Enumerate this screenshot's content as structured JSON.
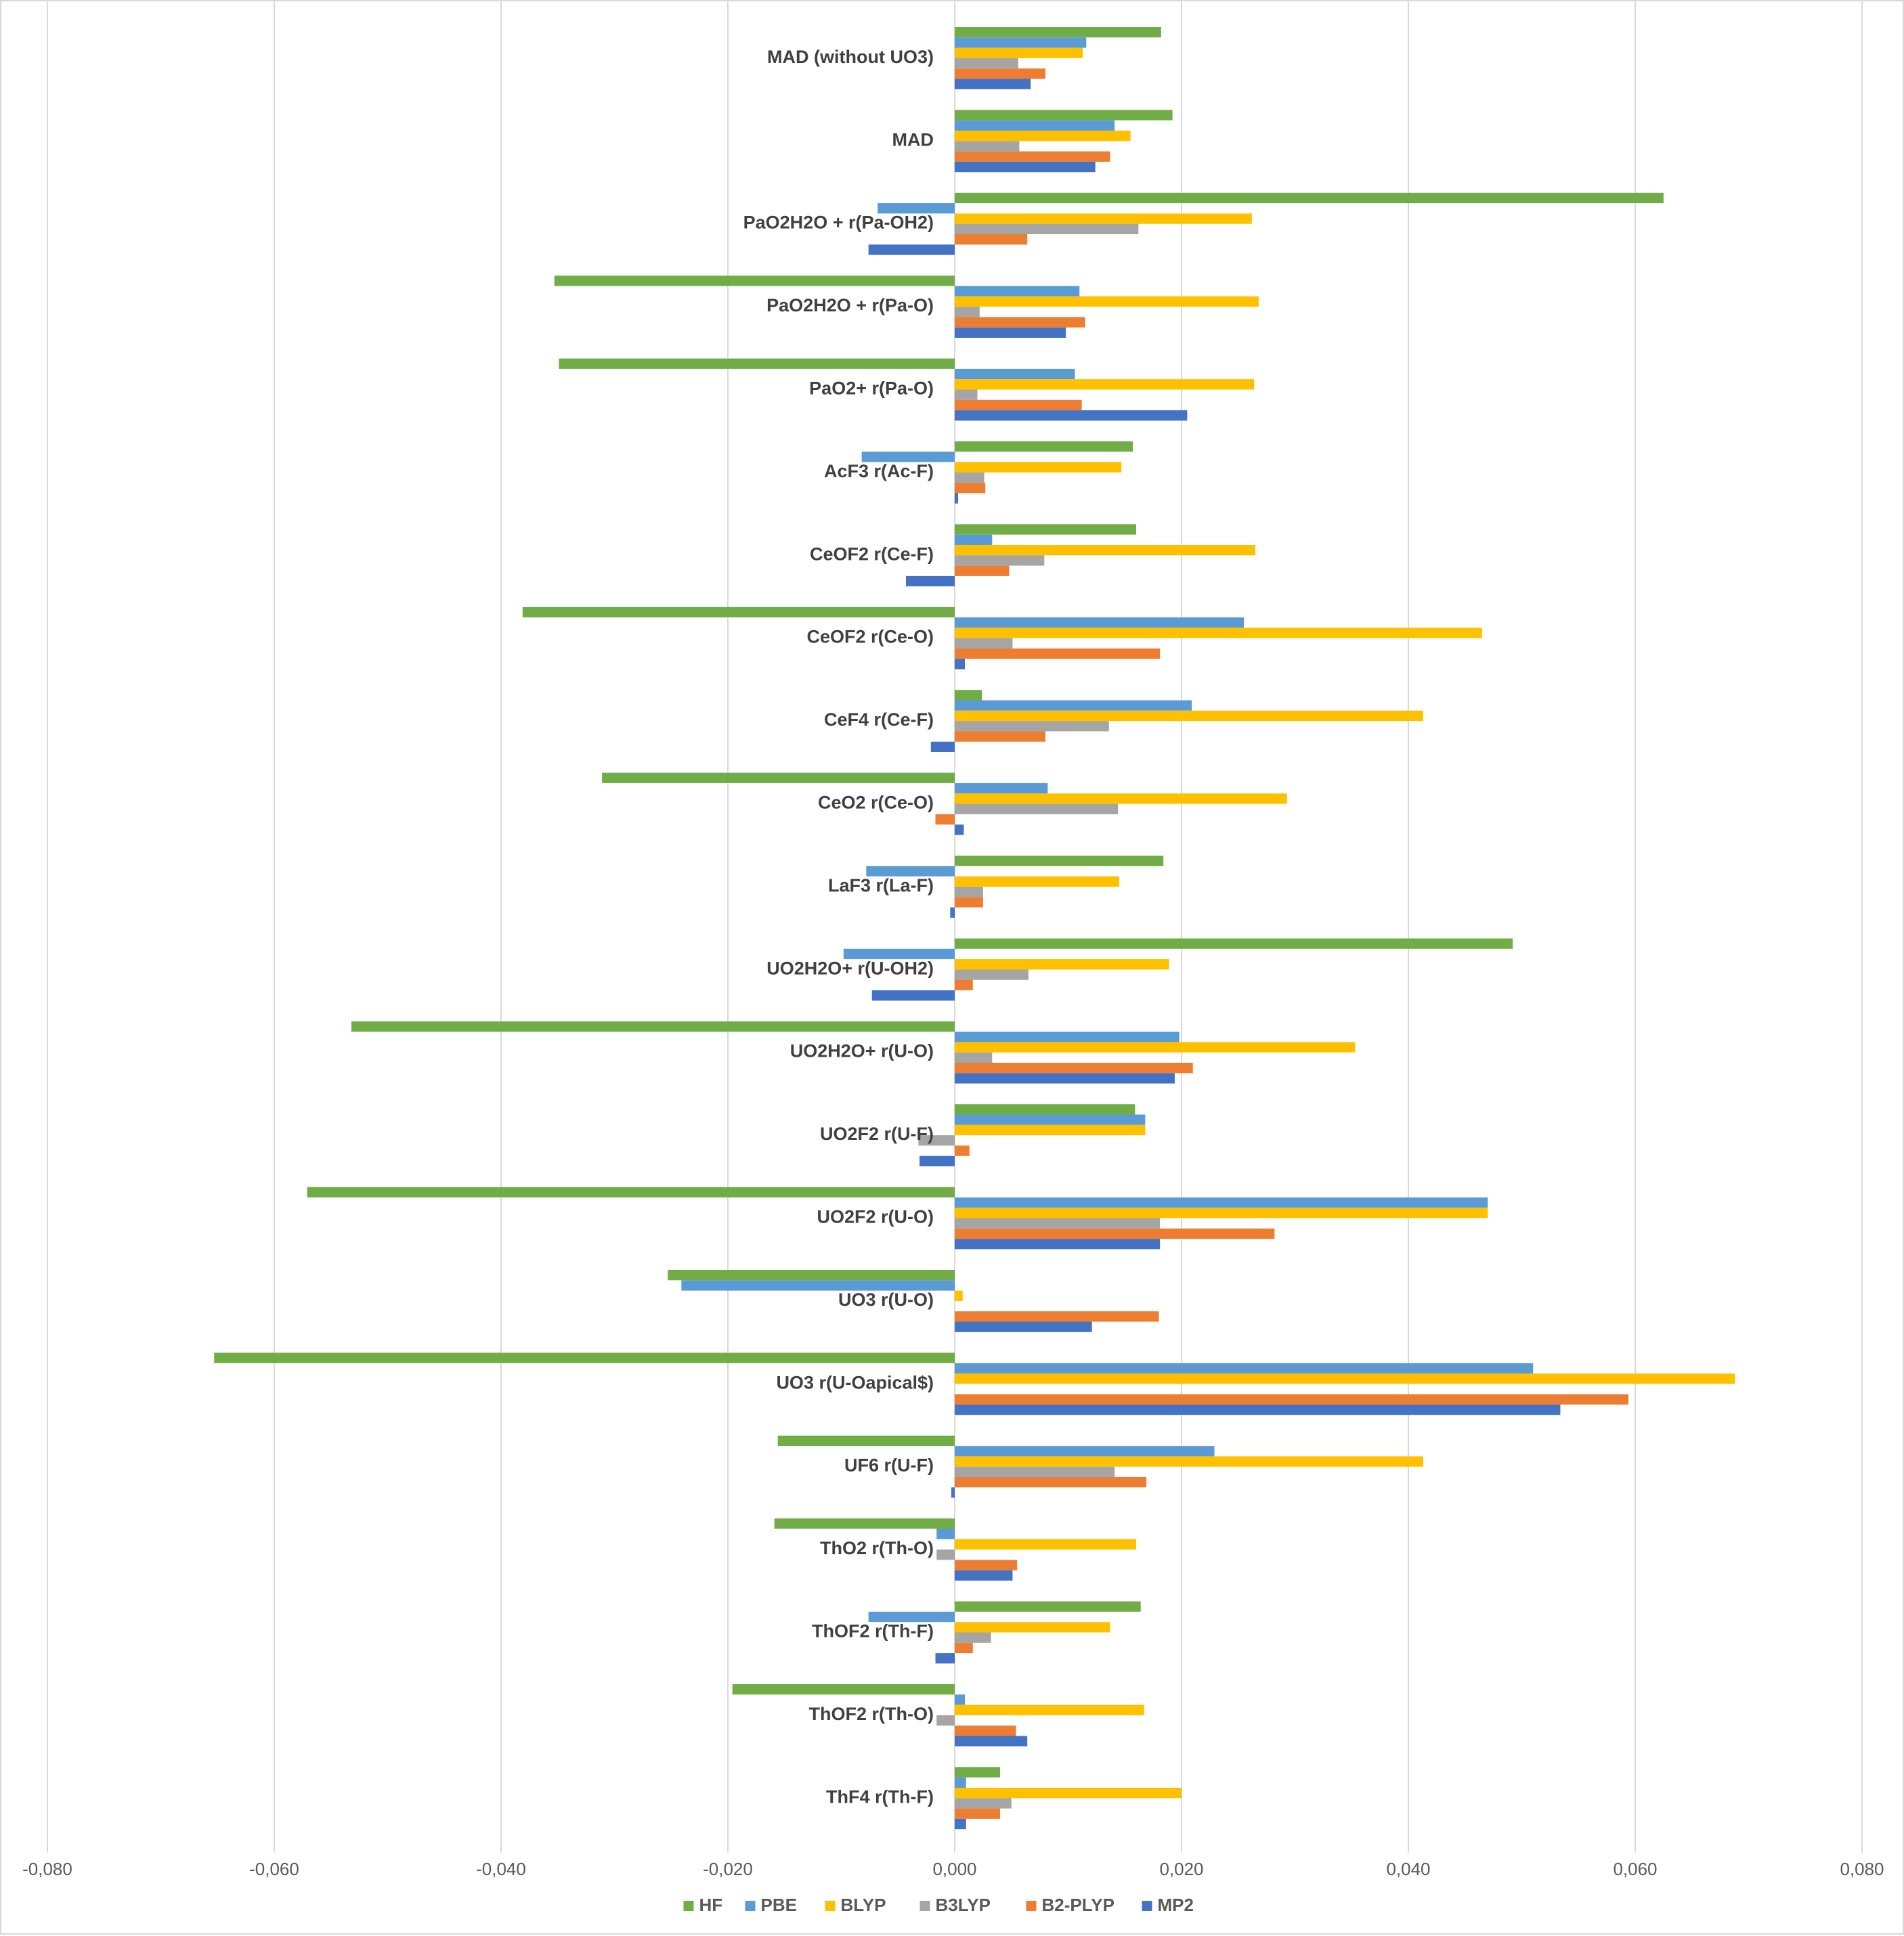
{
  "chart_data": {
    "type": "bar",
    "orientation": "horizontal",
    "title": "",
    "xlabel": "",
    "ylabel": "",
    "xlim": [
      -0.08,
      0.08
    ],
    "xticks": [
      -0.08,
      -0.06,
      -0.04,
      -0.02,
      0,
      0.02,
      0.04,
      0.06,
      0.08
    ],
    "xtick_labels": [
      "-0,080",
      "-0,060",
      "-0,040",
      "-0,020",
      "0,000",
      "0,020",
      "0,040",
      "0,060",
      "0,080"
    ],
    "grid": "vertical",
    "legend_position": "bottom",
    "categories": [
      "MAD (without UO3)",
      "MAD",
      "PaO2H2O +  r(Pa-OH2)",
      "PaO2H2O +  r(Pa-O)",
      "PaO2+ r(Pa-O)",
      "AcF3 r(Ac-F)",
      "CeOF2 r(Ce-F)",
      "CeOF2 r(Ce-O)",
      "CeF4 r(Ce-F)",
      "CeO2 r(Ce-O)",
      "LaF3 r(La-F)",
      "UO2H2O+ r(U-OH2)",
      "UO2H2O+ r(U-O)",
      "UO2F2 r(U-F)",
      "UO2F2 r(U-O)",
      "UO3 r(U-O)",
      "UO3 r(U-Oapical$)",
      "UF6 r(U-F)",
      "ThO2 r(Th-O)",
      "ThOF2 r(Th-F)",
      "ThOF2 r(Th-O)",
      "ThF4 r(Th-F)"
    ],
    "series": [
      {
        "name": "HF",
        "color": "#70ad47",
        "values": [
          0.0182,
          0.0192,
          0.0625,
          -0.0353,
          -0.0349,
          0.0157,
          0.016,
          -0.0381,
          0.0024,
          -0.0311,
          0.0184,
          0.0492,
          -0.0532,
          0.0159,
          -0.0571,
          -0.0253,
          -0.0653,
          -0.0156,
          -0.0159,
          0.0164,
          -0.0196,
          0.004
        ]
      },
      {
        "name": "PBE",
        "color": "#5b9bd5",
        "values": [
          0.0116,
          0.0141,
          -0.0068,
          0.011,
          0.0106,
          -0.0082,
          0.0033,
          0.0255,
          0.0209,
          0.0082,
          -0.0078,
          -0.0098,
          0.0198,
          0.0168,
          0.047,
          -0.0241,
          0.051,
          0.0229,
          -0.0016,
          -0.0076,
          0.0009,
          0.001
        ]
      },
      {
        "name": "BLYP",
        "color": "#ffc000",
        "values": [
          0.0113,
          0.0155,
          0.0262,
          0.0268,
          0.0264,
          0.0147,
          0.0265,
          0.0465,
          0.0413,
          0.0293,
          0.0145,
          0.0189,
          0.0353,
          0.0168,
          0.047,
          0.0007,
          0.0688,
          0.0413,
          0.016,
          0.0137,
          0.0167,
          0.02
        ]
      },
      {
        "name": "B3LYP",
        "color": "#a5a5a5",
        "values": [
          0.0056,
          0.0057,
          0.0162,
          0.0022,
          0.002,
          0.0026,
          0.0079,
          0.0051,
          0.0136,
          0.0144,
          0.0025,
          0.0065,
          0.0033,
          -0.0032,
          0.0181,
          0.0,
          0.0,
          0.0141,
          -0.0016,
          0.0032,
          -0.0016,
          0.005
        ]
      },
      {
        "name": "B2-PLYP",
        "color": "#ed7d31",
        "values": [
          0.008,
          0.0137,
          0.0064,
          0.0115,
          0.0112,
          0.0027,
          0.0048,
          0.0181,
          0.008,
          -0.0017,
          0.0025,
          0.0016,
          0.021,
          0.0013,
          0.0282,
          0.018,
          0.0594,
          0.0169,
          0.0055,
          0.0016,
          0.0054,
          0.004
        ]
      },
      {
        "name": "MP2",
        "color": "#4472c4",
        "values": [
          0.0067,
          0.0124,
          -0.0076,
          0.0098,
          0.0205,
          0.0003,
          -0.0043,
          0.0009,
          -0.0021,
          0.0008,
          -0.0004,
          -0.0073,
          0.0194,
          -0.0031,
          0.0181,
          0.0121,
          0.0534,
          -0.0003,
          0.0051,
          -0.0017,
          0.0064,
          0.001
        ]
      }
    ]
  },
  "colors": {
    "gridline": "#d9d9d9",
    "axis_text": "#595959",
    "category_text": "#404040",
    "frame": "#d9d9d9"
  }
}
